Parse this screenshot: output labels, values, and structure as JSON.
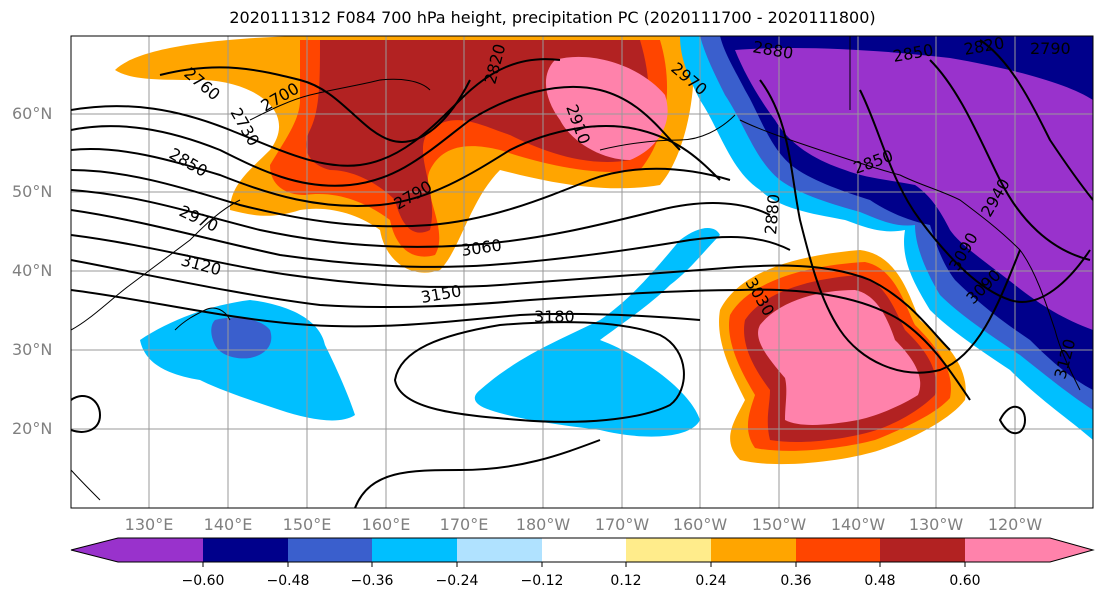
{
  "title": "2020111312 F084 700 hPa height, precipitation PC (2020111700 - 2020111800)",
  "lat_labels": [
    "60°N",
    "50°N",
    "40°N",
    "30°N",
    "20°N"
  ],
  "lon_labels": [
    "130°E",
    "140°E",
    "150°E",
    "160°E",
    "170°E",
    "180°W",
    "170°W",
    "160°W",
    "150°W",
    "140°W",
    "130°W",
    "120°W"
  ],
  "colorbar": {
    "ticks": [
      "−0.60",
      "−0.48",
      "−0.36",
      "−0.24",
      "−0.12",
      "0.12",
      "0.24",
      "0.36",
      "0.48",
      "0.60"
    ],
    "colors": [
      "#9932CC",
      "#00008B",
      "#3A5FCD",
      "#00BFFF",
      "#B0E2FF",
      "#FFFFFF",
      "#FFEC8B",
      "#FFA500",
      "#FF4500",
      "#B22222",
      "#FF82AB"
    ]
  },
  "contour_labels": [
    {
      "text": "2760"
    },
    {
      "text": "2700"
    },
    {
      "text": "2730"
    },
    {
      "text": "2850"
    },
    {
      "text": "2970"
    },
    {
      "text": "3120"
    },
    {
      "text": "2790"
    },
    {
      "text": "3060"
    },
    {
      "text": "3150"
    },
    {
      "text": "3180"
    },
    {
      "text": "2820"
    },
    {
      "text": "2910"
    },
    {
      "text": "2970"
    },
    {
      "text": "2880"
    },
    {
      "text": "2850"
    },
    {
      "text": "2820"
    },
    {
      "text": "2790"
    },
    {
      "text": "2850"
    },
    {
      "text": "2880"
    },
    {
      "text": "3030"
    },
    {
      "text": "3090"
    },
    {
      "text": "3090"
    },
    {
      "text": "3120"
    },
    {
      "text": "2940"
    }
  ]
}
